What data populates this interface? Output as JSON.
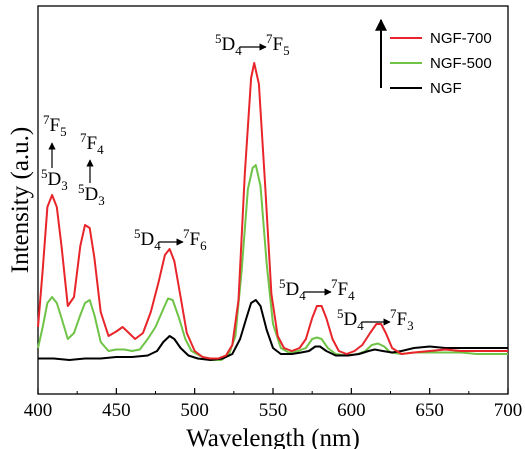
{
  "chart_data": {
    "type": "line",
    "title": "",
    "xlabel": "Wavelength (nm)",
    "ylabel": "Intensity (a.u.)",
    "xlim": [
      400,
      700
    ],
    "ylim": [
      0,
      100
    ],
    "x_ticks": [
      400,
      450,
      500,
      550,
      600,
      650,
      700
    ],
    "x_tick_labels": [
      "400",
      "450",
      "500",
      "550",
      "600",
      "650",
      "700"
    ],
    "grid": false,
    "legend_position": "top-right",
    "series": [
      {
        "name": "NGF-700",
        "color": "#e8252a",
        "points": [
          [
            400,
            11
          ],
          [
            403,
            30
          ],
          [
            406,
            51
          ],
          [
            409,
            55
          ],
          [
            412,
            51
          ],
          [
            415,
            38
          ],
          [
            419,
            18
          ],
          [
            423,
            21
          ],
          [
            427,
            38
          ],
          [
            430,
            45
          ],
          [
            433,
            44
          ],
          [
            436,
            34
          ],
          [
            440,
            16
          ],
          [
            445,
            8
          ],
          [
            450,
            9.5
          ],
          [
            454,
            11
          ],
          [
            458,
            9
          ],
          [
            462,
            7
          ],
          [
            467,
            9
          ],
          [
            472,
            16
          ],
          [
            477,
            26
          ],
          [
            481,
            35
          ],
          [
            484,
            37
          ],
          [
            487,
            33
          ],
          [
            491,
            21
          ],
          [
            495,
            9
          ],
          [
            500,
            3
          ],
          [
            505,
            1
          ],
          [
            510,
            0.5
          ],
          [
            515,
            0.5
          ],
          [
            520,
            1.5
          ],
          [
            524,
            5
          ],
          [
            528,
            20
          ],
          [
            532,
            62
          ],
          [
            536,
            94
          ],
          [
            538,
            99
          ],
          [
            541,
            92
          ],
          [
            545,
            58
          ],
          [
            549,
            22
          ],
          [
            553,
            8
          ],
          [
            557,
            4
          ],
          [
            562,
            3
          ],
          [
            567,
            4
          ],
          [
            571,
            7
          ],
          [
            575,
            14
          ],
          [
            578,
            18
          ],
          [
            581,
            18
          ],
          [
            584,
            14
          ],
          [
            588,
            7
          ],
          [
            592,
            3
          ],
          [
            597,
            2
          ],
          [
            602,
            3
          ],
          [
            607,
            5
          ],
          [
            612,
            9
          ],
          [
            616,
            12
          ],
          [
            619,
            12
          ],
          [
            622,
            9
          ],
          [
            626,
            4
          ],
          [
            632,
            2
          ],
          [
            640,
            2.5
          ],
          [
            650,
            3
          ],
          [
            660,
            3.5
          ],
          [
            670,
            3
          ],
          [
            680,
            3
          ],
          [
            690,
            3
          ],
          [
            700,
            3
          ]
        ]
      },
      {
        "name": "NGF-500",
        "color": "#6fc347",
        "points": [
          [
            400,
            4
          ],
          [
            403,
            11
          ],
          [
            406,
            19
          ],
          [
            409,
            21
          ],
          [
            412,
            19
          ],
          [
            415,
            14
          ],
          [
            419,
            7
          ],
          [
            423,
            9
          ],
          [
            427,
            15
          ],
          [
            430,
            19
          ],
          [
            433,
            20
          ],
          [
            436,
            15
          ],
          [
            440,
            6
          ],
          [
            445,
            3
          ],
          [
            450,
            3.5
          ],
          [
            455,
            3.5
          ],
          [
            460,
            3
          ],
          [
            465,
            3.5
          ],
          [
            470,
            7
          ],
          [
            475,
            11
          ],
          [
            480,
            17
          ],
          [
            483,
            20.5
          ],
          [
            486,
            20
          ],
          [
            490,
            14
          ],
          [
            494,
            7
          ],
          [
            498,
            3
          ],
          [
            503,
            1.5
          ],
          [
            510,
            0
          ],
          [
            517,
            0
          ],
          [
            522,
            2
          ],
          [
            526,
            8
          ],
          [
            530,
            30
          ],
          [
            534,
            57
          ],
          [
            537,
            64
          ],
          [
            539,
            65
          ],
          [
            542,
            58
          ],
          [
            546,
            32
          ],
          [
            550,
            12
          ],
          [
            555,
            4
          ],
          [
            560,
            2.5
          ],
          [
            566,
            3
          ],
          [
            571,
            4
          ],
          [
            575,
            7
          ],
          [
            578,
            7.5
          ],
          [
            581,
            7
          ],
          [
            585,
            4
          ],
          [
            590,
            2
          ],
          [
            597,
            1.5
          ],
          [
            604,
            2
          ],
          [
            609,
            3
          ],
          [
            613,
            5
          ],
          [
            617,
            5.5
          ],
          [
            621,
            4.5
          ],
          [
            625,
            2.5
          ],
          [
            632,
            2
          ],
          [
            640,
            2.5
          ],
          [
            650,
            2.5
          ],
          [
            660,
            2.5
          ],
          [
            670,
            2.5
          ],
          [
            680,
            2
          ],
          [
            690,
            2
          ],
          [
            700,
            2
          ]
        ]
      },
      {
        "name": "NGF",
        "color": "#000000",
        "points": [
          [
            400,
            0.5
          ],
          [
            410,
            0.5
          ],
          [
            420,
            0
          ],
          [
            430,
            0.5
          ],
          [
            440,
            0.5
          ],
          [
            450,
            1
          ],
          [
            460,
            1
          ],
          [
            470,
            1.5
          ],
          [
            476,
            3
          ],
          [
            480,
            6
          ],
          [
            484,
            8
          ],
          [
            487,
            7
          ],
          [
            491,
            4
          ],
          [
            496,
            1.5
          ],
          [
            502,
            0.5
          ],
          [
            510,
            0
          ],
          [
            518,
            0.5
          ],
          [
            524,
            2
          ],
          [
            529,
            7
          ],
          [
            533,
            14
          ],
          [
            536,
            19
          ],
          [
            539,
            20
          ],
          [
            542,
            18
          ],
          [
            546,
            10
          ],
          [
            550,
            4
          ],
          [
            555,
            2
          ],
          [
            562,
            2
          ],
          [
            568,
            2.5
          ],
          [
            573,
            3
          ],
          [
            577,
            4.5
          ],
          [
            580,
            4.5
          ],
          [
            584,
            3
          ],
          [
            590,
            1.5
          ],
          [
            598,
            1.5
          ],
          [
            605,
            2
          ],
          [
            611,
            3
          ],
          [
            615,
            3.5
          ],
          [
            620,
            3
          ],
          [
            626,
            2.5
          ],
          [
            632,
            3
          ],
          [
            640,
            4
          ],
          [
            650,
            4.5
          ],
          [
            660,
            4
          ],
          [
            670,
            4
          ],
          [
            680,
            4
          ],
          [
            690,
            4
          ],
          [
            700,
            4
          ]
        ]
      }
    ],
    "annotations": [
      {
        "id": "a1",
        "lines": [
          {
            "sup": "7",
            "base": "F",
            "sub": "5"
          },
          {
            "sup": "5",
            "base": "D",
            "sub": "3"
          }
        ]
      },
      {
        "id": "a2",
        "lines": [
          {
            "sup": "7",
            "base": "F",
            "sub": "4"
          },
          {
            "sup": "5",
            "base": "D",
            "sub": "3"
          }
        ]
      },
      {
        "id": "a3",
        "from": {
          "sup": "5",
          "base": "D",
          "sub": "4"
        },
        "to": {
          "sup": "7",
          "base": "F",
          "sub": "6"
        }
      },
      {
        "id": "a4",
        "from": {
          "sup": "5",
          "base": "D",
          "sub": "4"
        },
        "to": {
          "sup": "7",
          "base": "F",
          "sub": "5"
        }
      },
      {
        "id": "a5",
        "from": {
          "sup": "5",
          "base": "D",
          "sub": "4"
        },
        "to": {
          "sup": "7",
          "base": "F",
          "sub": "4"
        }
      },
      {
        "id": "a6",
        "from": {
          "sup": "5",
          "base": "D",
          "sub": "4"
        },
        "to": {
          "sup": "7",
          "base": "F",
          "sub": "3"
        }
      }
    ]
  }
}
